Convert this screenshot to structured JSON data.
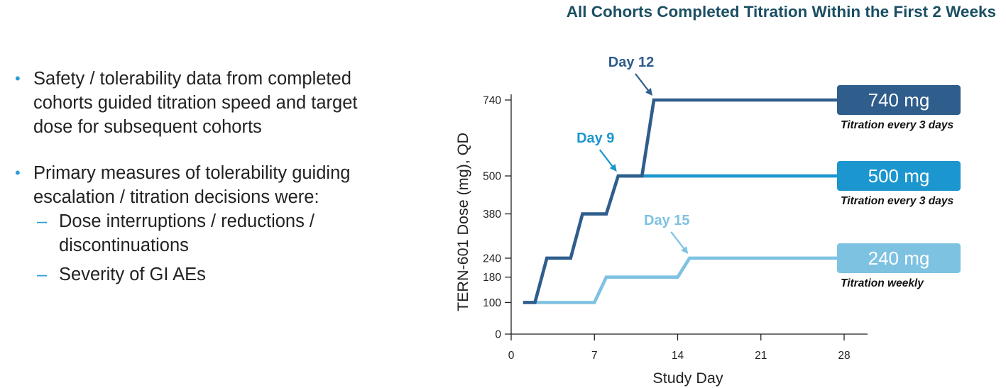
{
  "left_panel": {
    "bullets": [
      {
        "lines": [
          "Safety / tolerability data from completed",
          "cohorts guided titration speed and target",
          "dose for subsequent cohorts"
        ]
      },
      {
        "lines": [
          "Primary measures of tolerability guiding",
          "escalation / titration decisions were:"
        ],
        "subitems": [
          {
            "lines": [
              "Dose interruptions / reductions /",
              "discontinuations"
            ]
          },
          {
            "lines": [
              "Severity of GI AEs"
            ]
          }
        ]
      }
    ],
    "bullet_marker": "•",
    "sub_marker": "–"
  },
  "chart_data": {
    "type": "line",
    "title": "All Cohorts Completed Titration Within the First 2 Weeks",
    "xlabel": "Study Day",
    "ylabel": "TERN-601 Dose (mg), QD",
    "xlim": [
      0,
      30
    ],
    "ylim": [
      0,
      740
    ],
    "xticks": [
      0,
      7,
      14,
      21,
      28
    ],
    "yticks": [
      0,
      100,
      180,
      240,
      380,
      500,
      740
    ],
    "series": [
      {
        "color": "#2f5d8c",
        "points": [
          [
            1,
            100
          ],
          [
            2,
            100
          ],
          [
            3,
            240
          ],
          [
            5,
            240
          ],
          [
            6,
            380
          ],
          [
            8,
            380
          ],
          [
            9,
            500
          ],
          [
            11,
            500
          ],
          [
            12,
            740
          ],
          [
            28,
            740
          ]
        ],
        "end_label": "740 mg",
        "label_bg": "#2f5d8c",
        "note": "Titration every 3 days"
      },
      {
        "color": "#1b96cf",
        "points": [
          [
            9,
            500
          ],
          [
            28,
            500
          ]
        ],
        "end_label": "500 mg",
        "label_bg": "#1b96cf",
        "note": "Titration every 3 days"
      },
      {
        "color": "#7ec2e2",
        "points": [
          [
            2,
            100
          ],
          [
            7,
            100
          ],
          [
            8,
            180
          ],
          [
            14,
            180
          ],
          [
            15,
            240
          ],
          [
            28,
            240
          ]
        ],
        "end_label": "240 mg",
        "label_bg": "#7ec2e2",
        "note": "Titration weekly"
      }
    ],
    "annotations": [
      {
        "text": "Day 12",
        "x": 12,
        "y": 740,
        "color": "#2f5d8c"
      },
      {
        "text": "Day 9",
        "x": 9,
        "y": 500,
        "color": "#1b96cf"
      },
      {
        "text": "Day 15",
        "x": 15,
        "y": 240,
        "color": "#7ec2e2"
      }
    ],
    "grid": false,
    "legend": "none"
  }
}
